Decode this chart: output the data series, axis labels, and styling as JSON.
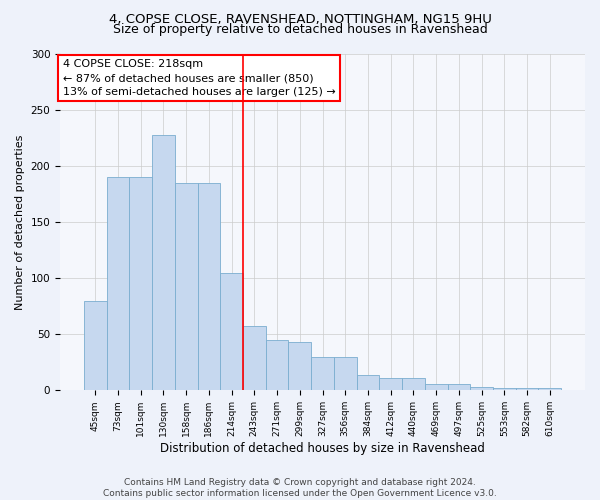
{
  "title1": "4, COPSE CLOSE, RAVENSHEAD, NOTTINGHAM, NG15 9HU",
  "title2": "Size of property relative to detached houses in Ravenshead",
  "xlabel": "Distribution of detached houses by size in Ravenshead",
  "ylabel": "Number of detached properties",
  "categories": [
    "45sqm",
    "73sqm",
    "101sqm",
    "130sqm",
    "158sqm",
    "186sqm",
    "214sqm",
    "243sqm",
    "271sqm",
    "299sqm",
    "327sqm",
    "356sqm",
    "384sqm",
    "412sqm",
    "440sqm",
    "469sqm",
    "497sqm",
    "525sqm",
    "553sqm",
    "582sqm",
    "610sqm"
  ],
  "values": [
    80,
    190,
    190,
    228,
    185,
    185,
    105,
    57,
    45,
    43,
    30,
    30,
    14,
    11,
    11,
    6,
    6,
    3,
    2,
    2,
    2
  ],
  "bar_color": "#c6d8ef",
  "bar_edge_color": "#7aadcf",
  "vline_x_index": 6,
  "vline_color": "red",
  "annotation_text": "4 COPSE CLOSE: 218sqm\n← 87% of detached houses are smaller (850)\n13% of semi-detached houses are larger (125) →",
  "annotation_box_color": "white",
  "annotation_box_edge_color": "red",
  "ylim": [
    0,
    300
  ],
  "yticks": [
    0,
    50,
    100,
    150,
    200,
    250,
    300
  ],
  "footer": "Contains HM Land Registry data © Crown copyright and database right 2024.\nContains public sector information licensed under the Open Government Licence v3.0.",
  "bg_color": "#eef2fa",
  "plot_bg_color": "#f5f7fc",
  "title1_fontsize": 9.5,
  "title2_fontsize": 9,
  "annotation_fontsize": 8,
  "footer_fontsize": 6.5,
  "ylabel_fontsize": 8,
  "xlabel_fontsize": 8.5
}
